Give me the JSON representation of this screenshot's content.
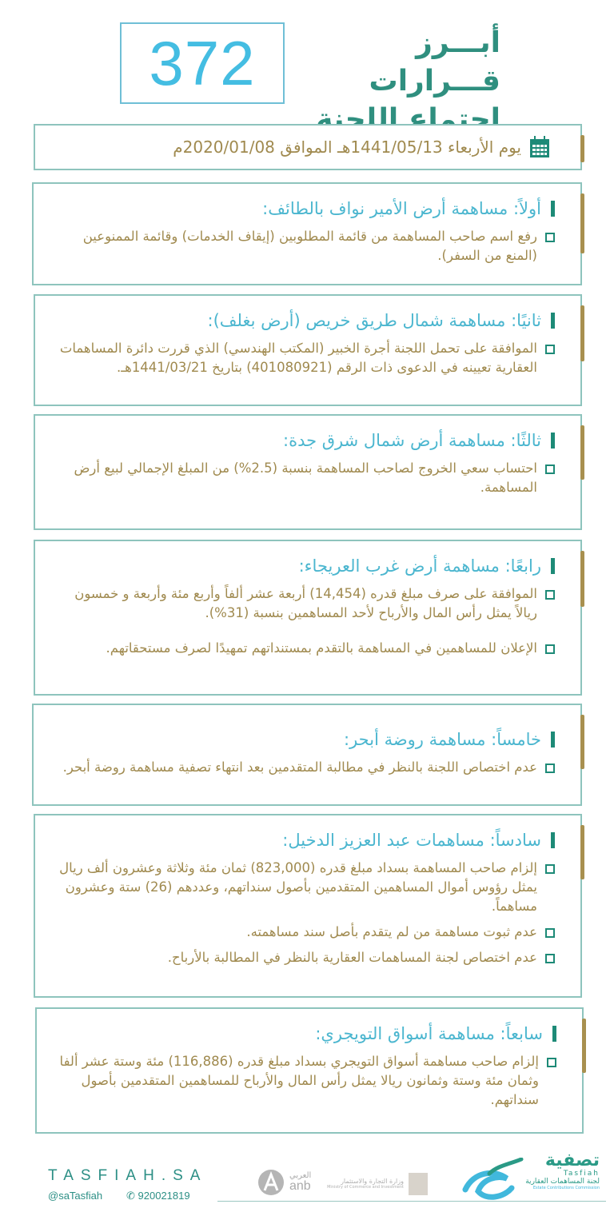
{
  "header": {
    "number": "372",
    "title_line1": "أبـــرز قـــرارات",
    "title_line2": "اجتماع اللجنة"
  },
  "date": {
    "icon": "calendar-icon",
    "text": "يوم الأربعاء 1441/05/13هـ الموافق 2020/01/08م"
  },
  "sections": [
    {
      "heading": "أولاً: مساهمة أرض الأمير نواف بالطائف:",
      "items": [
        "رفع اسم صاحب المساهمة من قائمة المطلوبين (إيقاف الخدمات) وقائمة الممنوعين (المنع من السفر)."
      ]
    },
    {
      "heading": "ثانيًا: مساهمة شمال طريق خريص (أرض بغلف):",
      "items": [
        "الموافقة على تحمل اللجنة أجرة الخبير (المكتب الهندسي) الذي قررت دائرة المساهمات العقارية تعيينه في الدعوى ذات الرقم (401080921) بتاريخ 1441/03/21هـ."
      ]
    },
    {
      "heading": "ثالثًا: مساهمة أرض شمال شرق جدة:",
      "items": [
        "احتساب سعي الخروج لصاحب المساهمة بنسبة (2.5%) من المبلغ الإجمالي لبيع أرض المساهمة."
      ]
    },
    {
      "heading": "رابعًا: مساهمة أرض غرب العريجاء:",
      "items": [
        "الموافقة على صرف مبلغ قدره (14,454) أربعة عشر ألفاً وأربع مئة وأربعة و خمسون ريالاً يمثل رأس المال والأرباح لأحد المساهمين بنسبة (31%).",
        "الإعلان للمساهمين في المساهمة بالتقدم بمستنداتهم تمهيدًا لصرف مستحقاتهم."
      ]
    },
    {
      "heading": "خامساً: مساهمة روضة أبحر:",
      "items": [
        "عدم اختصاص اللجنة بالنظر في مطالبة المتقدمين بعد انتهاء تصفية مساهمة روضة أبحر."
      ]
    },
    {
      "heading": "سادساً: مساهمات عبد العزيز الدخيل:",
      "items": [
        "إلزام صاحب المساهمة بسداد مبلغ قدره (823,000) ثمان مئة وثلاثة وعشرون ألف ريال يمثل رؤوس أموال المساهمين المتقدمين بأصول سنداتهم، وعددهم (26) ستة وعشرون مساهماً.",
        "عدم ثبوت مساهمة من لم يتقدم بأصل سند مساهمته.",
        "عدم اختصاص لجنة المساهمات العقارية بالنظر في المطالبة بالأرباح."
      ]
    },
    {
      "heading": "سابعاً: مساهمة أسواق التويجري:",
      "items": [
        "إلزام صاحب مساهمة أسواق التويجري بسداد مبلغ قدره (116,886) مئة وستة عشر ألفا وثمان مئة وستة وثمانون ريالا يمثل رأس المال والأرباح للمساهمين المتقدمين بأصول سنداتهم."
      ]
    }
  ],
  "footer": {
    "website": "TASFIAH.SA",
    "handle": "@saTasfiah",
    "phone": "920021819",
    "phone_icon": "phone-icon",
    "logo_tasfiah_ar": "تصفية",
    "logo_tasfiah_en": "Tasfiah",
    "logo_commission_ar": "لجنة المساهمات العقارية",
    "logo_commission_en": "Estate Contributions Commission",
    "ministry_ar": "وزارة التجارة والاستثمار",
    "ministry_en": "Ministry of Commerce and Investment",
    "bank_ar": "العربي",
    "bank_en": "anb"
  },
  "colors": {
    "heading": "#4bb6cf",
    "body_text": "#a08a4f",
    "accent_teal": "#1d8a77",
    "gold": "#a8904f",
    "border": "#8ec4bd",
    "number": "#44bde2"
  }
}
